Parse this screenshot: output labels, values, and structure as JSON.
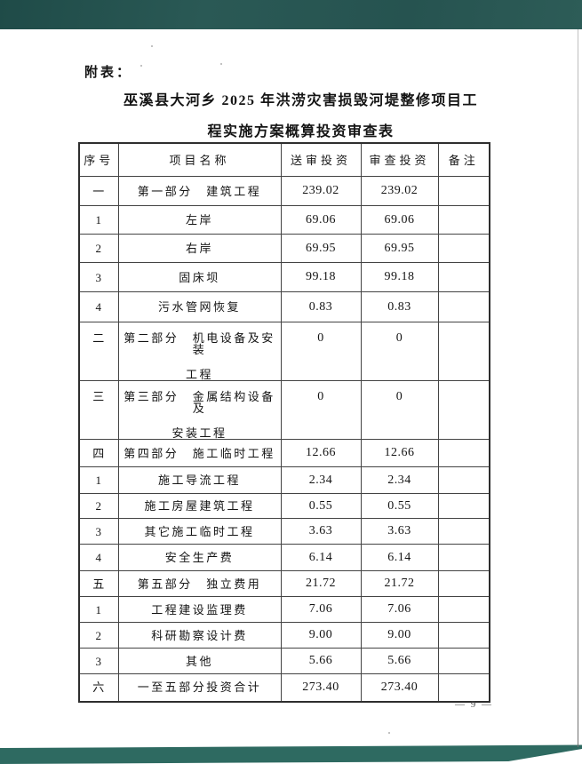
{
  "page": {
    "attachment_label": "附表：",
    "title_line1": "巫溪县大河乡 2025 年洪涝灾害损毁河堤整修项目工",
    "title_line2": "程实施方案概算投资审查表",
    "page_number": "— 9 —"
  },
  "table": {
    "headers": [
      "序号",
      "项目名称",
      "送审投资",
      "审查投资",
      "备注"
    ],
    "rows": [
      {
        "no": "一",
        "name": "第一部分　建筑工程",
        "submitted": "239.02",
        "reviewed": "239.02",
        "remark": ""
      },
      {
        "no": "1",
        "name": "左岸",
        "submitted": "69.06",
        "reviewed": "69.06",
        "remark": ""
      },
      {
        "no": "2",
        "name": "右岸",
        "submitted": "69.95",
        "reviewed": "69.95",
        "remark": ""
      },
      {
        "no": "3",
        "name": "固床坝",
        "submitted": "99.18",
        "reviewed": "99.18",
        "remark": ""
      },
      {
        "no": "4",
        "name": "污水管网恢复",
        "submitted": "0.83",
        "reviewed": "0.83",
        "remark": ""
      },
      {
        "no": "二",
        "name": "第二部分　机电设备及安装",
        "name2": "工程",
        "submitted": "0",
        "reviewed": "0",
        "remark": ""
      },
      {
        "no": "三",
        "name": "第三部分　金属结构设备及",
        "name2": "安装工程",
        "submitted": "0",
        "reviewed": "0",
        "remark": ""
      },
      {
        "no": "四",
        "name": "第四部分　施工临时工程",
        "submitted": "12.66",
        "reviewed": "12.66",
        "remark": ""
      },
      {
        "no": "1",
        "name": "施工导流工程",
        "submitted": "2.34",
        "reviewed": "2.34",
        "remark": ""
      },
      {
        "no": "2",
        "name": "施工房屋建筑工程",
        "submitted": "0.55",
        "reviewed": "0.55",
        "remark": ""
      },
      {
        "no": "3",
        "name": "其它施工临时工程",
        "submitted": "3.63",
        "reviewed": "3.63",
        "remark": ""
      },
      {
        "no": "4",
        "name": "安全生产费",
        "submitted": "6.14",
        "reviewed": "6.14",
        "remark": ""
      },
      {
        "no": "五",
        "name": "第五部分　独立费用",
        "submitted": "21.72",
        "reviewed": "21.72",
        "remark": ""
      },
      {
        "no": "1",
        "name": "工程建设监理费",
        "submitted": "7.06",
        "reviewed": "7.06",
        "remark": ""
      },
      {
        "no": "2",
        "name": "科研勘察设计费",
        "submitted": "9.00",
        "reviewed": "9.00",
        "remark": ""
      },
      {
        "no": "3",
        "name": "其他",
        "submitted": "5.66",
        "reviewed": "5.66",
        "remark": ""
      },
      {
        "no": "六",
        "name": "一至五部分投资合计",
        "submitted": "273.40",
        "reviewed": "273.40",
        "remark": ""
      }
    ]
  },
  "scan_artifacts": {
    "top_band_color": "#265350",
    "bottom_band_color": "#2e6a61",
    "edge_line_color": "#8f8f8f"
  }
}
